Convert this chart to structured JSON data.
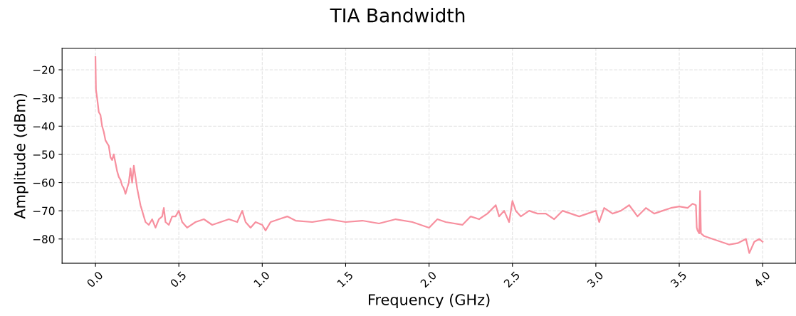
{
  "chart_data": {
    "type": "line",
    "title": "TIA Bandwidth",
    "xlabel": "Frequency (GHz)",
    "ylabel": "Amplitude (dBm)",
    "xlim": [
      -0.2,
      4.2
    ],
    "ylim": [
      -88.6,
      -12.4
    ],
    "xticks": [
      {
        "value": 0,
        "label": "0.0"
      },
      0.5,
      {
        "value": 1,
        "label": "1.0"
      },
      1.5,
      {
        "value": 2,
        "label": "2.0"
      },
      2.5,
      {
        "value": 3,
        "label": "3.0"
      },
      3.5,
      {
        "value": 4,
        "label": "4.0"
      }
    ],
    "yticks": [
      {
        "value": -20,
        "label": "−20"
      },
      {
        "value": -30,
        "label": "−30"
      },
      {
        "value": -40,
        "label": "−40"
      },
      {
        "value": -50,
        "label": "−50"
      },
      {
        "value": -60,
        "label": "−60"
      },
      {
        "value": -70,
        "label": "−70"
      },
      {
        "value": -80,
        "label": "−80"
      }
    ],
    "grid": true,
    "legend": false,
    "series": [
      {
        "color": "#f7909f",
        "x": [
          0.0,
          0.003,
          0.01,
          0.02,
          0.03,
          0.04,
          0.05,
          0.06,
          0.07,
          0.08,
          0.09,
          0.1,
          0.11,
          0.12,
          0.13,
          0.14,
          0.15,
          0.16,
          0.17,
          0.18,
          0.19,
          0.2,
          0.21,
          0.22,
          0.23,
          0.24,
          0.25,
          0.27,
          0.29,
          0.3,
          0.32,
          0.34,
          0.36,
          0.38,
          0.4,
          0.41,
          0.42,
          0.44,
          0.46,
          0.48,
          0.5,
          0.52,
          0.55,
          0.6,
          0.65,
          0.7,
          0.75,
          0.8,
          0.85,
          0.88,
          0.9,
          0.93,
          0.96,
          1.0,
          1.02,
          1.05,
          1.1,
          1.15,
          1.2,
          1.3,
          1.4,
          1.5,
          1.6,
          1.7,
          1.8,
          1.9,
          1.95,
          2.0,
          2.05,
          2.1,
          2.2,
          2.25,
          2.3,
          2.35,
          2.4,
          2.42,
          2.45,
          2.48,
          2.5,
          2.52,
          2.55,
          2.6,
          2.65,
          2.7,
          2.75,
          2.8,
          2.85,
          2.9,
          2.95,
          3.0,
          3.02,
          3.05,
          3.1,
          3.15,
          3.2,
          3.25,
          3.3,
          3.35,
          3.4,
          3.45,
          3.5,
          3.55,
          3.58,
          3.6,
          3.605,
          3.61,
          3.62,
          3.625,
          3.63,
          3.65,
          3.7,
          3.75,
          3.8,
          3.85,
          3.9,
          3.92,
          3.95,
          3.98,
          4.0
        ],
        "values": [
          -15.5,
          -27,
          -30,
          -35,
          -36,
          -40,
          -42,
          -45,
          -46,
          -47,
          -51,
          -52,
          -50,
          -53,
          -56,
          -58,
          -59,
          -61,
          -62,
          -64,
          -62,
          -60,
          -55,
          -60,
          -54,
          -58,
          -62,
          -68,
          -72,
          -74,
          -75,
          -73,
          -76,
          -73,
          -72,
          -69,
          -74,
          -75,
          -72,
          -72,
          -70,
          -74,
          -76,
          -74,
          -73,
          -75,
          -74,
          -73,
          -74,
          -70,
          -74,
          -76,
          -74,
          -75,
          -77,
          -74,
          -73,
          -72,
          -73.5,
          -74,
          -73,
          -74,
          -73.5,
          -74.5,
          -73,
          -74,
          -75,
          -76,
          -73,
          -74,
          -75,
          -72,
          -73,
          -71,
          -68,
          -72,
          -70,
          -74,
          -66.5,
          -70,
          -72,
          -70,
          -71,
          -71,
          -73,
          -70,
          -71,
          -72,
          -71,
          -70,
          -74,
          -69,
          -71,
          -70,
          -68,
          -72,
          -69,
          -71,
          -70,
          -69,
          -68.5,
          -69,
          -67.5,
          -68,
          -76,
          -77,
          -78,
          -63,
          -78,
          -79,
          -80,
          -81,
          -82,
          -81.5,
          -80,
          -85,
          -81,
          -80,
          -81
        ]
      }
    ]
  }
}
